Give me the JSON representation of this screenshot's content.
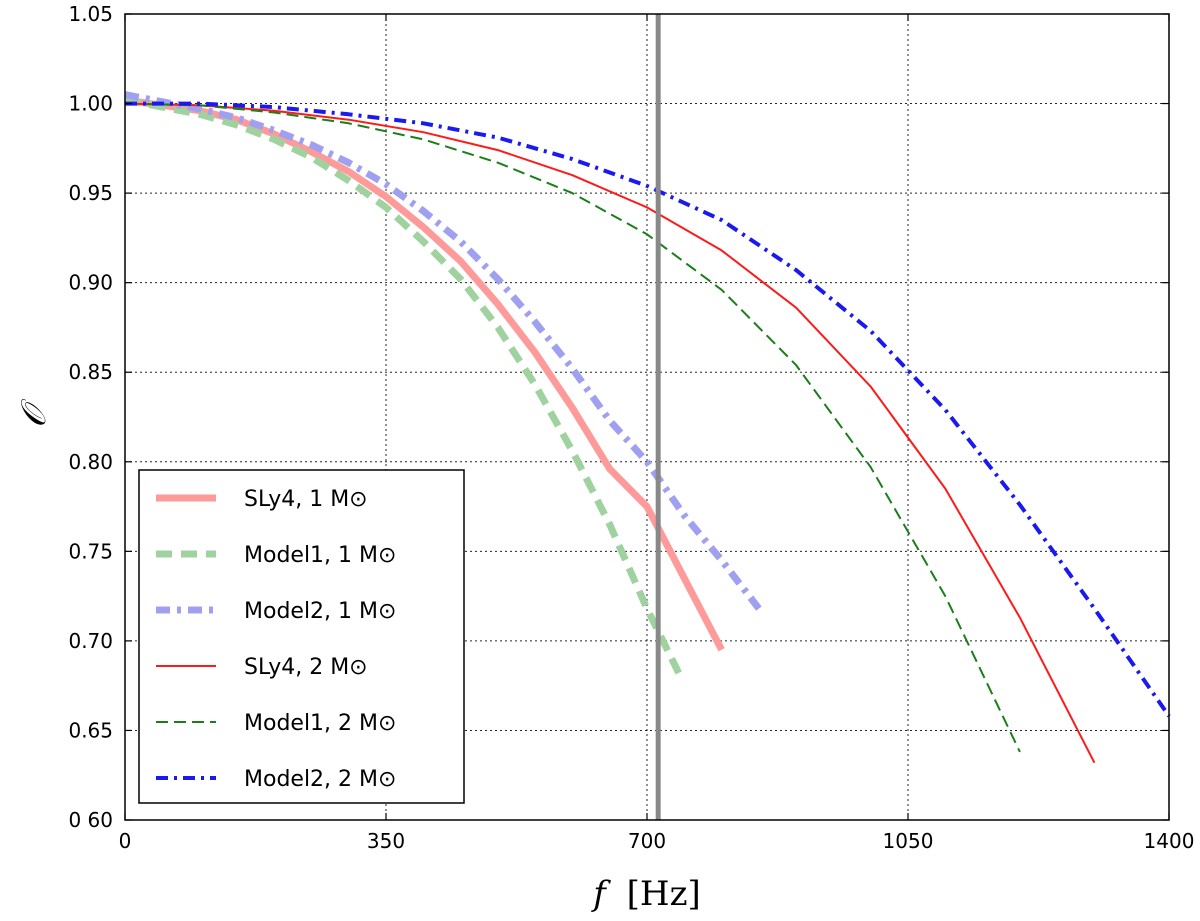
{
  "chart_data": {
    "type": "line",
    "title": "",
    "xlabel_var": "f",
    "xlabel_unit": "[Hz]",
    "ylabel": "𝒪",
    "xlim": [
      0,
      1400
    ],
    "ylim": [
      0.6,
      1.05
    ],
    "xticks": [
      0,
      350,
      700,
      1050,
      1400
    ],
    "xtick_labels": [
      "0",
      "350",
      "700",
      "1050",
      "1400"
    ],
    "yticks": [
      0.6,
      0.65,
      0.7,
      0.75,
      0.8,
      0.85,
      0.9,
      0.95,
      1.0,
      1.05
    ],
    "ytick_labels": [
      "0 60",
      "0.65",
      "0.70",
      "0.75",
      "0.80",
      "0.85",
      "0.90",
      "0.95",
      "1.00",
      "1.05"
    ],
    "grid": true,
    "vline": {
      "x": 715,
      "color": "#888888"
    },
    "legend_position": "lower-left",
    "series": [
      {
        "name": "SLy4, 1 M",
        "label": "SLy4, 1 M⊙",
        "color": "#ff9a9a",
        "style": "solid",
        "width": 7,
        "x": [
          0,
          50,
          100,
          150,
          200,
          250,
          300,
          350,
          400,
          450,
          500,
          550,
          600,
          650,
          700,
          750,
          800
        ],
        "y": [
          1.002,
          0.999,
          0.996,
          0.991,
          0.983,
          0.973,
          0.962,
          0.948,
          0.931,
          0.912,
          0.888,
          0.861,
          0.83,
          0.796,
          0.775,
          0.735,
          0.695
        ]
      },
      {
        "name": "Model1, 1 M",
        "label": "Model1, 1 M⊙",
        "color": "#9fd29f",
        "style": "dashed",
        "width": 7,
        "x": [
          0,
          50,
          100,
          150,
          200,
          250,
          300,
          350,
          400,
          450,
          500,
          550,
          600,
          650,
          700,
          745
        ],
        "y": [
          1.002,
          0.998,
          0.994,
          0.988,
          0.98,
          0.97,
          0.957,
          0.942,
          0.923,
          0.902,
          0.875,
          0.843,
          0.806,
          0.765,
          0.718,
          0.68
        ]
      },
      {
        "name": "Model2, 1 M",
        "label": "Model2, 1 M⊙",
        "color": "#a0a0f0",
        "style": "dashdot",
        "width": 7,
        "x": [
          0,
          50,
          100,
          150,
          200,
          250,
          300,
          350,
          400,
          450,
          500,
          550,
          600,
          650,
          700,
          750,
          800,
          850
        ],
        "y": [
          1.005,
          1.001,
          0.997,
          0.992,
          0.985,
          0.977,
          0.967,
          0.955,
          0.94,
          0.923,
          0.902,
          0.878,
          0.852,
          0.823,
          0.8,
          0.77,
          0.745,
          0.718
        ]
      },
      {
        "name": "SLy4, 2 M",
        "label": "SLy4, 2 M⊙",
        "color": "#ff1a1a",
        "style": "solid",
        "width": 2,
        "x": [
          0,
          100,
          200,
          300,
          400,
          500,
          600,
          700,
          800,
          900,
          1000,
          1100,
          1200,
          1300
        ],
        "y": [
          1.0,
          0.999,
          0.996,
          0.991,
          0.984,
          0.974,
          0.96,
          0.942,
          0.918,
          0.886,
          0.842,
          0.785,
          0.713,
          0.632
        ]
      },
      {
        "name": "Model1, 2 M",
        "label": "Model1, 2 M⊙",
        "color": "#1a7f1a",
        "style": "dashed",
        "width": 2,
        "x": [
          0,
          100,
          200,
          300,
          400,
          500,
          600,
          700,
          800,
          900,
          1000,
          1100,
          1200
        ],
        "y": [
          1.0,
          0.999,
          0.995,
          0.989,
          0.98,
          0.967,
          0.95,
          0.927,
          0.896,
          0.854,
          0.797,
          0.725,
          0.638
        ]
      },
      {
        "name": "Model2, 2 M",
        "label": "Model2, 2 M⊙",
        "color": "#1a1aee",
        "style": "dashdot",
        "width": 4,
        "x": [
          0,
          100,
          200,
          300,
          400,
          500,
          600,
          700,
          800,
          900,
          1000,
          1100,
          1200,
          1300,
          1400
        ],
        "y": [
          1.0,
          1.0,
          0.998,
          0.994,
          0.989,
          0.981,
          0.969,
          0.954,
          0.935,
          0.907,
          0.873,
          0.829,
          0.776,
          0.718,
          0.658
        ]
      }
    ]
  }
}
